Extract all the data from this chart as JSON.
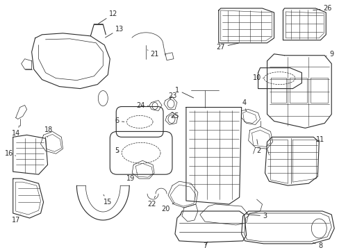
{
  "background_color": "#ffffff",
  "line_color": "#2a2a2a",
  "figsize": [
    4.89,
    3.6
  ],
  "dpi": 100,
  "label_fs": 7.0
}
